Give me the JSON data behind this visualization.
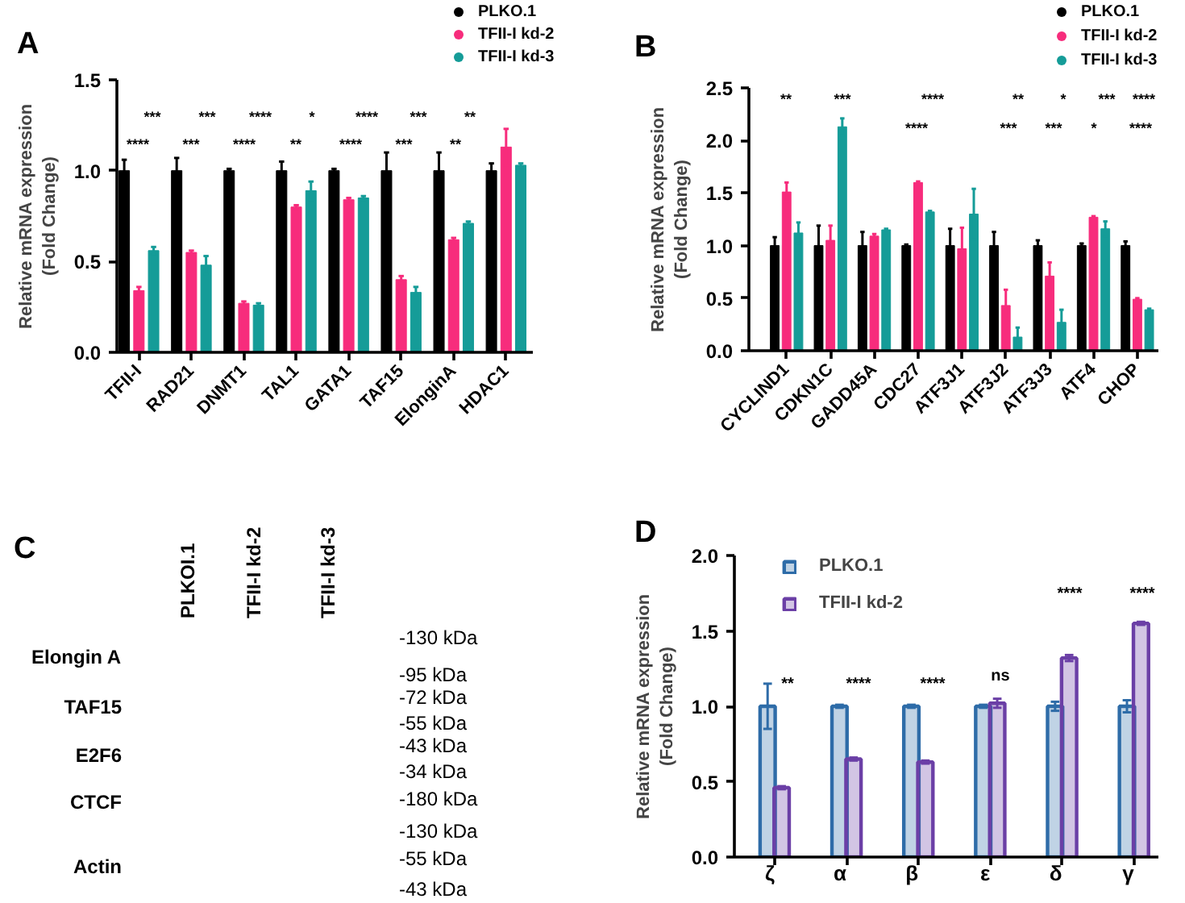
{
  "chart_data": [
    {
      "type": "bar",
      "title": "A",
      "ylabel": "Relative mRNA expression\n(Fold Change)",
      "categories": [
        "TFII-I",
        "RAD21",
        "DNMT1",
        "TAL1",
        "GATA1",
        "TAF15",
        "ElonginA",
        "HDAC1"
      ],
      "series": [
        {
          "name": "PLKO.1",
          "color": "#000000",
          "values": [
            1,
            1,
            1,
            1,
            1,
            1,
            1,
            1
          ],
          "errors": [
            0.06,
            0.07,
            0.01,
            0.05,
            0.01,
            0.1,
            0.1,
            0.04
          ]
        },
        {
          "name": "TFII-I kd-2",
          "color": "#f72c7c",
          "values": [
            0.34,
            0.55,
            0.27,
            0.8,
            0.84,
            0.4,
            0.62,
            1.13
          ],
          "errors": [
            0.02,
            0.01,
            0.01,
            0.01,
            0.01,
            0.02,
            0.01,
            0.1
          ]
        },
        {
          "name": "TFII-I kd-3",
          "color": "#159c98",
          "values": [
            0.56,
            0.48,
            0.26,
            0.89,
            0.85,
            0.33,
            0.71,
            1.03
          ],
          "errors": [
            0.02,
            0.05,
            0.01,
            0.05,
            0.01,
            0.03,
            0.01,
            0.01
          ]
        }
      ],
      "ylim": [
        0,
        1.5
      ],
      "yticks": [
        {
          "value": 0,
          "label": "0.0"
        },
        0.5,
        {
          "value": 1,
          "label": "1.0"
        },
        1.5
      ],
      "legend": "top right",
      "annotations": [
        "****",
        "***",
        "****",
        "**",
        "****",
        "***",
        "**",
        "***",
        "***",
        "****",
        "*",
        "****",
        "***",
        "**"
      ]
    },
    {
      "type": "bar",
      "title": "B",
      "ylabel": "Relative mRNA expression\n(Fold Change)",
      "categories": [
        "CYCLIND1",
        "CDKN1C",
        "GADD45A",
        "CDC27",
        "ATF3J1",
        "ATF3J2",
        "ATF3J3",
        "ATF4",
        "CHOP"
      ],
      "series": [
        {
          "name": "PLKO.1",
          "color": "#000000",
          "values": [
            1,
            1,
            1,
            1,
            1,
            1,
            1,
            1,
            1
          ],
          "errors": [
            0.08,
            0.19,
            0.13,
            0.01,
            0.16,
            0.13,
            0.05,
            0.02,
            0.04
          ]
        },
        {
          "name": "TFII-I kd-2",
          "color": "#f72c7c",
          "values": [
            1.51,
            1.05,
            1.09,
            1.6,
            0.97,
            0.43,
            0.71,
            1.27,
            0.49
          ],
          "errors": [
            0.09,
            0.14,
            0.02,
            0.01,
            0.2,
            0.15,
            0.13,
            0.01,
            0.01
          ]
        },
        {
          "name": "TFII-I kd-3",
          "color": "#159c98",
          "values": [
            1.12,
            2.13,
            1.15,
            1.32,
            1.3,
            0.13,
            0.27,
            1.16,
            0.39
          ],
          "errors": [
            0.1,
            0.08,
            0.01,
            0.01,
            0.24,
            0.09,
            0.12,
            0.07,
            0.01
          ]
        }
      ],
      "ylim": [
        0,
        2.5
      ],
      "yticks": [
        {
          "value": 0,
          "label": "0.0"
        },
        0.5,
        {
          "value": 1,
          "label": "1.0"
        },
        1.5,
        {
          "value": 2,
          "label": "2.0"
        },
        2.5
      ],
      "legend": "top right",
      "annotations": [
        "**",
        "***",
        "****",
        "**",
        "*",
        "***",
        "****",
        "****",
        "***",
        "***",
        "*",
        "****"
      ]
    },
    {
      "type": "other",
      "title": "C",
      "categories": [
        "PLKOI.1",
        "TFII-I kd-2",
        "TFII-I kd-3"
      ],
      "y_categories": [
        "Elongin A",
        "TAF15",
        "E2F6",
        "CTCF",
        "Actin"
      ],
      "annotations": [
        "-130 kDa",
        "-95 kDa",
        "-72 kDa",
        "-55 kDa",
        "-43 kDa",
        "-34 kDa",
        "-180 kDa",
        "-130 kDa",
        "-55 kDa",
        "-43 kDa"
      ]
    },
    {
      "type": "bar",
      "title": "D",
      "ylabel": "Relative mRNA expression\n(Fold Change)",
      "categories": [
        "ζ",
        "α",
        "β",
        "ε",
        "δ",
        "γ"
      ],
      "series": [
        {
          "name": "PLKO.1",
          "color": "#2e6ca8",
          "values": [
            1,
            1,
            1,
            1,
            1,
            1
          ],
          "errors": [
            0.15,
            0.01,
            0.01,
            0.01,
            0.03,
            0.04
          ]
        },
        {
          "name": "TFII-I kd-2",
          "color": "#6b3fa6",
          "values": [
            0.46,
            0.65,
            0.63,
            1.02,
            1.32,
            1.55
          ],
          "errors": [
            0.01,
            0.01,
            0.01,
            0.03,
            0.02,
            0.01
          ]
        }
      ],
      "ylim": [
        0,
        2
      ],
      "yticks": [
        {
          "value": 0,
          "label": "0.0"
        },
        0.5,
        {
          "value": 1,
          "label": "1.0"
        },
        1.5,
        {
          "value": 2,
          "label": "2.0"
        }
      ],
      "legend": "top left",
      "annotations": [
        "**",
        "****",
        "****",
        "ns",
        "****",
        "****"
      ]
    }
  ]
}
